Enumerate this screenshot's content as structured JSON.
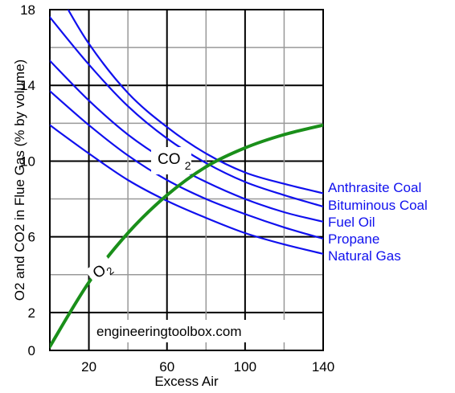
{
  "colors": {
    "co2_curves": "#1010ee",
    "o2_curve": "#1a8f1a",
    "grid_major": "#000000",
    "grid_minor": "#999999"
  },
  "chart_data": {
    "type": "line",
    "xlabel": "Excess Air",
    "ylabel": "O2 and CO2 in Flue Gas (% by volume)",
    "xlim": [
      0,
      140
    ],
    "ylim": [
      0,
      18
    ],
    "x_ticks": [
      "20",
      "60",
      "100",
      "140"
    ],
    "y_ticks": [
      "0",
      "2",
      "6",
      "10",
      "14",
      "18"
    ],
    "legend_position": "right",
    "curve_labels": {
      "co2": "CO2",
      "o2": "O2"
    },
    "watermark": "engineeringtoolbox.com",
    "series": [
      {
        "name": "Anthrasite Coal",
        "group": "CO2",
        "x": [
          5,
          20,
          40,
          60,
          80,
          100,
          120,
          140
        ],
        "y": [
          18.8,
          16.2,
          13.6,
          11.8,
          10.4,
          9.4,
          8.8,
          8.3
        ]
      },
      {
        "name": "Bituminous Coal",
        "group": "CO2",
        "x": [
          0,
          20,
          40,
          60,
          80,
          100,
          120,
          140
        ],
        "y": [
          17.6,
          15.1,
          12.9,
          11.2,
          9.9,
          8.9,
          8.2,
          7.6
        ]
      },
      {
        "name": "Fuel Oil",
        "group": "CO2",
        "x": [
          0,
          20,
          40,
          60,
          80,
          100,
          120,
          140
        ],
        "y": [
          15.3,
          13.2,
          11.4,
          10.0,
          8.9,
          8.0,
          7.3,
          6.8
        ]
      },
      {
        "name": "Propane",
        "group": "CO2",
        "x": [
          0,
          20,
          40,
          60,
          80,
          100,
          120,
          140
        ],
        "y": [
          13.7,
          11.9,
          10.3,
          9.0,
          8.0,
          7.2,
          6.5,
          5.9
        ]
      },
      {
        "name": "Natural Gas",
        "group": "CO2",
        "x": [
          0,
          20,
          40,
          60,
          80,
          100,
          120,
          140
        ],
        "y": [
          11.9,
          10.4,
          9.0,
          7.9,
          7.0,
          6.2,
          5.6,
          5.1
        ]
      },
      {
        "name": "O2",
        "group": "O2",
        "x": [
          0,
          20,
          40,
          60,
          80,
          100,
          120,
          140
        ],
        "y": [
          0.2,
          3.6,
          6.2,
          8.2,
          9.7,
          10.7,
          11.4,
          11.9
        ]
      }
    ]
  }
}
